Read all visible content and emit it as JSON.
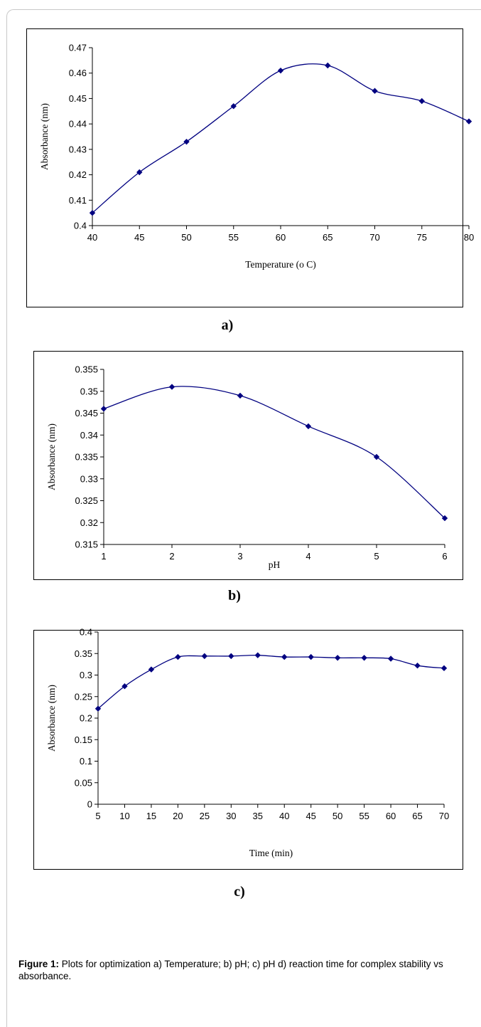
{
  "colors": {
    "series": "#000080",
    "axis": "#000000",
    "frame": "#000000"
  },
  "charts": [
    {
      "sublabel": "a)",
      "xlabel": "Temperature (o C)",
      "ylabel": "Absorbance (nm)"
    },
    {
      "sublabel": "b)",
      "xlabel": "pH",
      "ylabel": "Absorbance (nm)"
    },
    {
      "sublabel": "c)",
      "xlabel": "Time (min)",
      "ylabel": "Absorbance (nm)"
    }
  ],
  "caption": {
    "label": "Figure 1:",
    "text": " Plots for optimization a) Temperature; b) pH; c) pH d) reaction time for complex stability vs absorbance."
  },
  "chart_data": [
    {
      "type": "line",
      "smooth": true,
      "marker": "diamond",
      "grid": false,
      "legend": "none",
      "xlabel": "Temperature (o C)",
      "ylabel": "Absorbance (nm)",
      "xlim": [
        40,
        80
      ],
      "ylim": [
        0.4,
        0.47
      ],
      "xticks": [
        "40",
        "45",
        "50",
        "55",
        "60",
        "65",
        "70",
        "75",
        "80"
      ],
      "yticks": [
        "0.4",
        "0.41",
        "0.42",
        "0.43",
        "0.44",
        "0.45",
        "0.46",
        "0.47"
      ],
      "x": [
        40,
        45,
        50,
        55,
        60,
        65,
        70,
        75,
        80
      ],
      "y": [
        0.405,
        0.421,
        0.433,
        0.447,
        0.461,
        0.463,
        0.453,
        0.449,
        0.441
      ]
    },
    {
      "type": "line",
      "smooth": true,
      "marker": "diamond",
      "grid": false,
      "legend": "none",
      "xlabel": "pH",
      "ylabel": "Absorbance (nm)",
      "xlim": [
        1,
        6
      ],
      "ylim": [
        0.315,
        0.355
      ],
      "xticks": [
        "1",
        "2",
        "3",
        "4",
        "5",
        "6"
      ],
      "yticks": [
        "0.315",
        "0.32",
        "0.325",
        "0.33",
        "0.335",
        "0.34",
        "0.345",
        "0.35",
        "0.355"
      ],
      "x": [
        1,
        2,
        3,
        4,
        5,
        6
      ],
      "y": [
        0.346,
        0.351,
        0.349,
        0.342,
        0.335,
        0.321
      ]
    },
    {
      "type": "line",
      "smooth": true,
      "marker": "diamond",
      "grid": false,
      "legend": "none",
      "xlabel": "Time (min)",
      "ylabel": "Absorbance (nm)",
      "xlim": [
        5,
        70
      ],
      "ylim": [
        0,
        0.4
      ],
      "xticks": [
        "5",
        "10",
        "15",
        "20",
        "25",
        "30",
        "35",
        "40",
        "45",
        "50",
        "55",
        "60",
        "65",
        "70"
      ],
      "yticks": [
        "0",
        "0.05",
        "0.1",
        "0.15",
        "0.2",
        "0.25",
        "0.3",
        "0.35",
        "0.4"
      ],
      "x": [
        5,
        10,
        15,
        20,
        25,
        30,
        35,
        40,
        45,
        50,
        55,
        60,
        65,
        70
      ],
      "y": [
        0.222,
        0.274,
        0.313,
        0.342,
        0.344,
        0.344,
        0.346,
        0.342,
        0.342,
        0.34,
        0.34,
        0.338,
        0.322,
        0.316
      ]
    }
  ]
}
